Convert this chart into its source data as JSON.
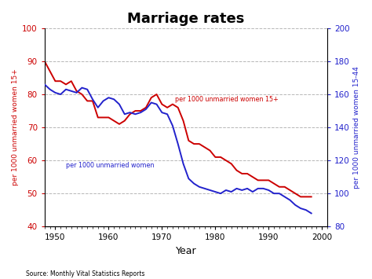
{
  "title": "Marriage rates",
  "xlabel": "Year",
  "ylabel_left": "per 1000 unmarried women 15+",
  "ylabel_right": "per 1000 unmarried women 15-44",
  "source": "Source: Monthly Vital Statistics Reports",
  "left_ylim": [
    40,
    100
  ],
  "right_ylim": [
    80,
    200
  ],
  "left_yticks": [
    40,
    50,
    60,
    70,
    80,
    90,
    100
  ],
  "right_yticks": [
    80,
    100,
    120,
    140,
    160,
    180,
    200
  ],
  "xlim": [
    1948,
    2001
  ],
  "xticks": [
    1950,
    1960,
    1970,
    1980,
    1990,
    2000
  ],
  "red_label": "per 1000 unmarried women 15+",
  "blue_label": "per 1000 unmarried women",
  "red_color": "#cc0000",
  "blue_color": "#2222cc",
  "grid_color": "#888888",
  "background_color": "#ffffff",
  "red_data_years": [
    1948,
    1949,
    1950,
    1951,
    1952,
    1953,
    1954,
    1955,
    1956,
    1957,
    1958,
    1959,
    1960,
    1961,
    1962,
    1963,
    1964,
    1965,
    1966,
    1967,
    1968,
    1969,
    1970,
    1971,
    1972,
    1973,
    1974,
    1975,
    1976,
    1977,
    1978,
    1979,
    1980,
    1981,
    1982,
    1983,
    1984,
    1985,
    1986,
    1987,
    1988,
    1989,
    1990,
    1991,
    1992,
    1993,
    1994,
    1995,
    1996,
    1997,
    1998
  ],
  "red_data_values": [
    90,
    87,
    84,
    84,
    83,
    84,
    81,
    80,
    78,
    78,
    73,
    73,
    73,
    72,
    71,
    72,
    74,
    75,
    75,
    76,
    79,
    80,
    77,
    76,
    77,
    76,
    72,
    66,
    65,
    65,
    64,
    63,
    61,
    61,
    60,
    59,
    57,
    56,
    56,
    55,
    54,
    54,
    54,
    53,
    52,
    52,
    51,
    50,
    49,
    49,
    49
  ],
  "blue_data_years": [
    1948,
    1949,
    1950,
    1951,
    1952,
    1953,
    1954,
    1955,
    1956,
    1957,
    1958,
    1959,
    1960,
    1961,
    1962,
    1963,
    1964,
    1965,
    1966,
    1967,
    1968,
    1969,
    1970,
    1971,
    1972,
    1973,
    1974,
    1975,
    1976,
    1977,
    1978,
    1979,
    1980,
    1981,
    1982,
    1983,
    1984,
    1985,
    1986,
    1987,
    1988,
    1989,
    1990,
    1991,
    1992,
    1993,
    1994,
    1995,
    1996,
    1997,
    1998
  ],
  "blue_data_values": [
    166,
    163,
    161,
    160,
    163,
    162,
    161,
    164,
    163,
    157,
    152,
    156,
    158,
    157,
    154,
    148,
    149,
    148,
    149,
    151,
    155,
    154,
    149,
    148,
    141,
    130,
    118,
    109,
    106,
    104,
    103,
    102,
    101,
    100,
    102,
    101,
    103,
    102,
    103,
    101,
    103,
    103,
    102,
    100,
    100,
    98,
    96,
    93,
    91,
    90,
    88
  ]
}
